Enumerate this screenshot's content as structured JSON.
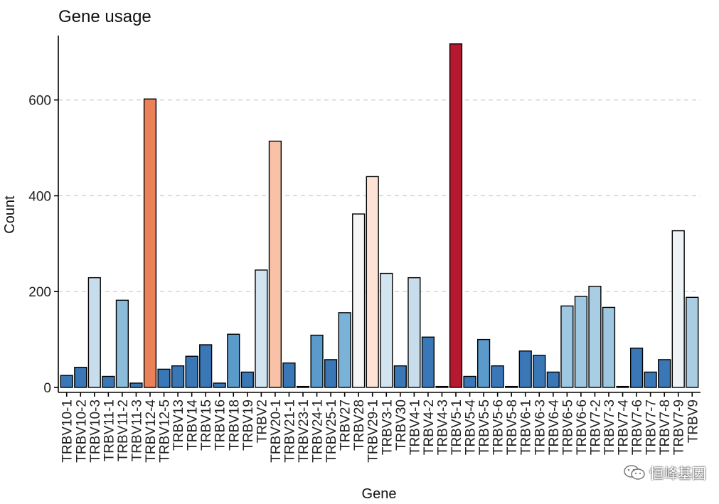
{
  "chart_data": {
    "type": "bar",
    "title": "Gene usage",
    "xlabel": "Gene",
    "ylabel": "Count",
    "ylim": [
      0,
      720
    ],
    "yticks": [
      0,
      200,
      400,
      600
    ],
    "grid": "horizontal-dashed",
    "legend": "none",
    "categories": [
      "TRBV10-1",
      "TRBV10-2",
      "TRBV10-3",
      "TRBV11-1",
      "TRBV11-2",
      "TRBV11-3",
      "TRBV12-4",
      "TRBV12-5",
      "TRBV13",
      "TRBV14",
      "TRBV15",
      "TRBV16",
      "TRBV18",
      "TRBV19",
      "TRBV2",
      "TRBV20-1",
      "TRBV21-1",
      "TRBV23-1",
      "TRBV24-1",
      "TRBV25-1",
      "TRBV27",
      "TRBV28",
      "TRBV29-1",
      "TRBV3-1",
      "TRBV30",
      "TRBV4-1",
      "TRBV4-2",
      "TRBV4-3",
      "TRBV5-1",
      "TRBV5-4",
      "TRBV5-5",
      "TRBV5-6",
      "TRBV5-8",
      "TRBV6-1",
      "TRBV6-3",
      "TRBV6-4",
      "TRBV6-5",
      "TRBV6-6",
      "TRBV7-2",
      "TRBV7-3",
      "TRBV7-4",
      "TRBV7-6",
      "TRBV7-7",
      "TRBV7-8",
      "TRBV7-9",
      "TRBV9"
    ],
    "values": [
      25,
      42,
      229,
      23,
      182,
      9,
      602,
      38,
      45,
      65,
      89,
      9,
      111,
      32,
      245,
      514,
      51,
      2,
      109,
      58,
      156,
      362,
      440,
      238,
      45,
      229,
      105,
      2,
      717,
      23,
      100,
      45,
      2,
      76,
      67,
      32,
      170,
      190,
      211,
      167,
      2,
      82,
      32,
      58,
      327,
      188
    ],
    "colors": [
      "#3a77b6",
      "#3a77b6",
      "#c7ddec",
      "#3a77b6",
      "#8dbcdb",
      "#3a77b6",
      "#ea8158",
      "#3a77b6",
      "#3a77b6",
      "#3a77b6",
      "#3a77b6",
      "#3a77b6",
      "#5b9bcb",
      "#3a77b6",
      "#d2e4f0",
      "#f9c2a6",
      "#3a77b6",
      "#3a77b6",
      "#5b9bcb",
      "#3a77b6",
      "#7ab2d8",
      "#f5f5f5",
      "#fde3d6",
      "#d2e4f0",
      "#3a77b6",
      "#c7ddec",
      "#3a77b6",
      "#3a77b6",
      "#b5192f",
      "#3a77b6",
      "#5b9bcb",
      "#3a77b6",
      "#3a77b6",
      "#3a77b6",
      "#3a77b6",
      "#3a77b6",
      "#9ec8e1",
      "#9ec8e1",
      "#a9cde3",
      "#9ec8e1",
      "#3a77b6",
      "#3a77b6",
      "#3a77b6",
      "#3a77b6",
      "#eef3f8",
      "#a9cde3"
    ]
  },
  "watermark": {
    "text": "恒峰基因",
    "icon": "wechat-icon"
  }
}
